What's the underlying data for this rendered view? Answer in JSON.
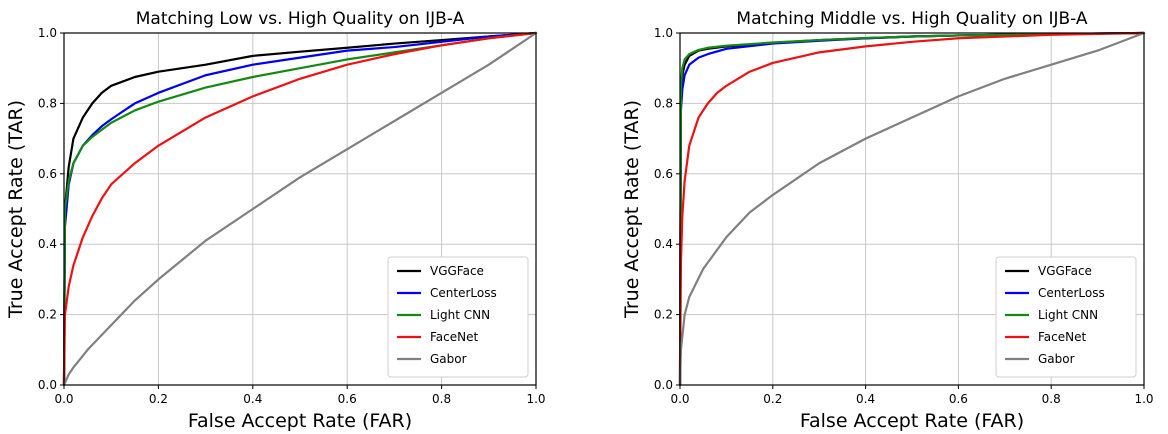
{
  "chart_data": [
    {
      "type": "line",
      "title": "Matching Low vs. High Quality on IJB-A",
      "xlabel": "False Accept Rate (FAR)",
      "ylabel": "True Accept Rate (TAR)",
      "xlim": [
        0,
        1
      ],
      "ylim": [
        0,
        1
      ],
      "xticks": [
        "0.0",
        "0.2",
        "0.4",
        "0.6",
        "0.8",
        "1.0"
      ],
      "yticks": [
        "0.0",
        "0.2",
        "0.4",
        "0.6",
        "0.8",
        "1.0"
      ],
      "grid": true,
      "legend_position": "lower-right",
      "series": [
        {
          "name": "VGGFace",
          "color": "#000000",
          "x": [
            0,
            0.002,
            0.01,
            0.02,
            0.04,
            0.06,
            0.08,
            0.1,
            0.15,
            0.2,
            0.3,
            0.4,
            0.5,
            0.6,
            0.7,
            0.8,
            0.9,
            1.0
          ],
          "y": [
            0,
            0.5,
            0.62,
            0.7,
            0.76,
            0.8,
            0.83,
            0.85,
            0.875,
            0.89,
            0.91,
            0.935,
            0.947,
            0.958,
            0.97,
            0.98,
            0.99,
            1.0
          ]
        },
        {
          "name": "CenterLoss",
          "color": "#0000ee",
          "x": [
            0,
            0.002,
            0.01,
            0.02,
            0.04,
            0.06,
            0.08,
            0.1,
            0.15,
            0.2,
            0.3,
            0.4,
            0.5,
            0.6,
            0.7,
            0.8,
            0.9,
            1.0
          ],
          "y": [
            0,
            0.45,
            0.57,
            0.63,
            0.68,
            0.71,
            0.735,
            0.755,
            0.8,
            0.83,
            0.88,
            0.91,
            0.93,
            0.95,
            0.96,
            0.975,
            0.99,
            1.0
          ]
        },
        {
          "name": "Light CNN",
          "color": "#138a13",
          "x": [
            0,
            0.002,
            0.01,
            0.02,
            0.04,
            0.06,
            0.08,
            0.1,
            0.15,
            0.2,
            0.3,
            0.4,
            0.5,
            0.6,
            0.7,
            0.8,
            0.9,
            1.0
          ],
          "y": [
            0,
            0.5,
            0.58,
            0.63,
            0.68,
            0.705,
            0.725,
            0.745,
            0.78,
            0.805,
            0.845,
            0.875,
            0.9,
            0.925,
            0.945,
            0.965,
            0.985,
            1.0
          ]
        },
        {
          "name": "FaceNet",
          "color": "#ee1111",
          "x": [
            0,
            0.002,
            0.01,
            0.02,
            0.04,
            0.06,
            0.08,
            0.1,
            0.15,
            0.2,
            0.3,
            0.4,
            0.5,
            0.6,
            0.7,
            0.8,
            0.9,
            1.0
          ],
          "y": [
            0,
            0.2,
            0.28,
            0.34,
            0.42,
            0.48,
            0.53,
            0.57,
            0.63,
            0.68,
            0.76,
            0.82,
            0.87,
            0.91,
            0.94,
            0.965,
            0.985,
            1.0
          ]
        },
        {
          "name": "Gabor",
          "color": "#808080",
          "x": [
            0,
            0.01,
            0.02,
            0.05,
            0.1,
            0.15,
            0.2,
            0.3,
            0.4,
            0.5,
            0.6,
            0.7,
            0.8,
            0.9,
            1.0
          ],
          "y": [
            0,
            0.03,
            0.05,
            0.1,
            0.17,
            0.24,
            0.3,
            0.41,
            0.5,
            0.59,
            0.67,
            0.75,
            0.83,
            0.91,
            1.0
          ]
        }
      ]
    },
    {
      "type": "line",
      "title": "Matching Middle vs. High Quality on IJB-A",
      "xlabel": "False Accept Rate (FAR)",
      "ylabel": "True Accept Rate (TAR)",
      "xlim": [
        0,
        1
      ],
      "ylim": [
        0,
        1
      ],
      "xticks": [
        "0.0",
        "0.2",
        "0.4",
        "0.6",
        "0.8",
        "1.0"
      ],
      "yticks": [
        "0.0",
        "0.2",
        "0.4",
        "0.6",
        "0.8",
        "1.0"
      ],
      "grid": true,
      "legend_position": "lower-right",
      "series": [
        {
          "name": "VGGFace",
          "color": "#000000",
          "x": [
            0,
            0.002,
            0.005,
            0.01,
            0.02,
            0.04,
            0.06,
            0.1,
            0.2,
            0.3,
            0.4,
            0.5,
            0.6,
            0.8,
            1.0
          ],
          "y": [
            0,
            0.82,
            0.88,
            0.91,
            0.935,
            0.95,
            0.955,
            0.962,
            0.972,
            0.98,
            0.985,
            0.99,
            0.993,
            0.997,
            1.0
          ]
        },
        {
          "name": "CenterLoss",
          "color": "#0000ee",
          "x": [
            0,
            0.002,
            0.005,
            0.01,
            0.02,
            0.04,
            0.06,
            0.1,
            0.2,
            0.3,
            0.4,
            0.5,
            0.6,
            0.8,
            1.0
          ],
          "y": [
            0,
            0.78,
            0.84,
            0.88,
            0.91,
            0.93,
            0.94,
            0.955,
            0.97,
            0.978,
            0.985,
            0.99,
            0.993,
            0.997,
            1.0
          ]
        },
        {
          "name": "Light CNN",
          "color": "#138a13",
          "x": [
            0,
            0.002,
            0.005,
            0.01,
            0.02,
            0.04,
            0.06,
            0.1,
            0.2,
            0.3,
            0.4,
            0.5,
            0.6,
            0.8,
            1.0
          ],
          "y": [
            0,
            0.85,
            0.9,
            0.925,
            0.94,
            0.952,
            0.958,
            0.964,
            0.973,
            0.98,
            0.986,
            0.99,
            0.993,
            0.997,
            1.0
          ]
        },
        {
          "name": "FaceNet",
          "color": "#ee1111",
          "x": [
            0,
            0.002,
            0.005,
            0.01,
            0.02,
            0.04,
            0.06,
            0.08,
            0.1,
            0.15,
            0.2,
            0.3,
            0.4,
            0.5,
            0.6,
            0.8,
            1.0
          ],
          "y": [
            0,
            0.35,
            0.48,
            0.58,
            0.68,
            0.76,
            0.8,
            0.83,
            0.85,
            0.89,
            0.915,
            0.945,
            0.962,
            0.975,
            0.985,
            0.995,
            1.0
          ]
        },
        {
          "name": "Gabor",
          "color": "#808080",
          "x": [
            0,
            0.002,
            0.01,
            0.02,
            0.05,
            0.1,
            0.15,
            0.2,
            0.3,
            0.4,
            0.5,
            0.6,
            0.7,
            0.8,
            0.9,
            1.0
          ],
          "y": [
            0,
            0.1,
            0.2,
            0.25,
            0.33,
            0.42,
            0.49,
            0.54,
            0.63,
            0.7,
            0.76,
            0.82,
            0.87,
            0.91,
            0.95,
            1.0
          ]
        }
      ]
    }
  ]
}
